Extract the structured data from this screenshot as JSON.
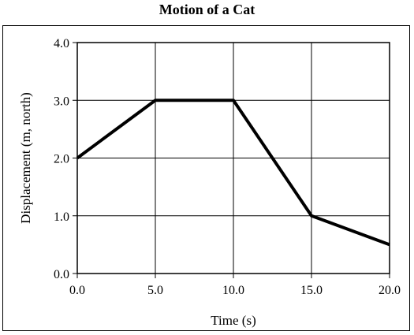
{
  "chart_data": {
    "type": "line",
    "title": "Motion of a Cat",
    "xlabel": "Time (s)",
    "ylabel": "Displacement (m, north)",
    "xlim": [
      0,
      20
    ],
    "ylim": [
      0,
      4
    ],
    "x_ticks": [
      0,
      5,
      10,
      15,
      20
    ],
    "y_ticks": [
      0,
      1,
      2,
      3,
      4
    ],
    "x_tick_labels": [
      "0.0",
      "5.0",
      "10.0",
      "15.0",
      "20.0"
    ],
    "y_tick_labels": [
      "0.0",
      "1.0",
      "2.0",
      "3.0",
      "4.0"
    ],
    "grid": true,
    "series": [
      {
        "x": [
          0,
          5,
          10,
          15,
          20
        ],
        "values": [
          2.0,
          3.0,
          3.0,
          1.0,
          0.5
        ],
        "color": "#000000"
      }
    ]
  }
}
